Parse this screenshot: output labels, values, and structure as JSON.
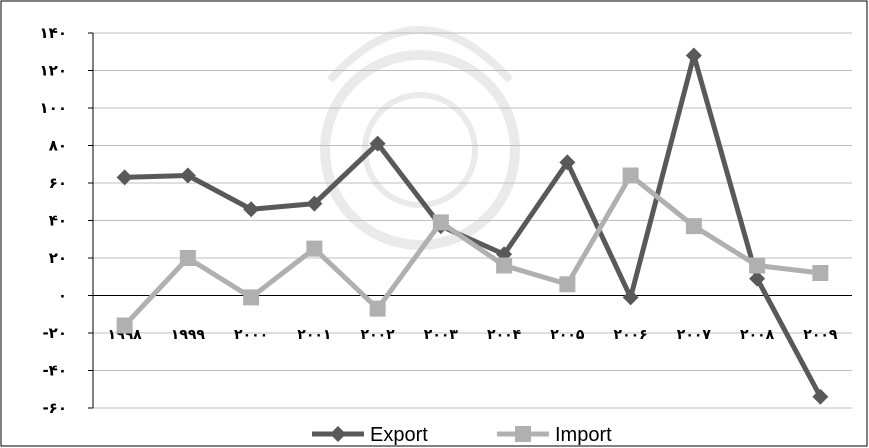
{
  "chart_data": {
    "type": "line",
    "categories": [
      "۱۹۹۸",
      "۱۹۹۹",
      "۲۰۰۰",
      "۲۰۰۱",
      "۲۰۰۲",
      "۲۰۰۳",
      "۲۰۰۴",
      "۲۰۰۵",
      "۲۰۰۶",
      "۲۰۰۷",
      "۲۰۰۸",
      "۲۰۰۹"
    ],
    "series": [
      {
        "name": "Export",
        "values": [
          63,
          64,
          46,
          49,
          81,
          37,
          22,
          71,
          -1,
          128,
          9,
          -54
        ],
        "color": "#595959",
        "marker": "diamond"
      },
      {
        "name": "Import",
        "values": [
          -16,
          20,
          -1,
          25,
          -7,
          39,
          16,
          6,
          64,
          37,
          16,
          12
        ],
        "color": "#b0b0b0",
        "marker": "square"
      }
    ],
    "yticks": [
      140,
      120,
      100,
      80,
      60,
      40,
      20,
      0,
      -20,
      -40,
      -60
    ],
    "ytick_labels": [
      "۱۴۰",
      "۱۲۰",
      "۱۰۰",
      "۸۰",
      "۶۰",
      "۴۰",
      "۲۰",
      "۰",
      "-۲۰",
      "-۴۰",
      "-۶۰"
    ],
    "ylim": [
      -60,
      140
    ],
    "grid": true,
    "legend_position": "bottom",
    "title": "",
    "xlabel": "",
    "ylabel": ""
  }
}
